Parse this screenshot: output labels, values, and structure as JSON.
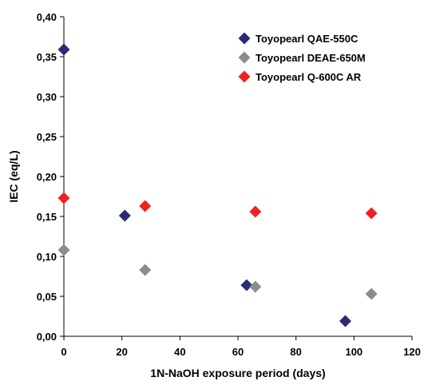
{
  "chart_data": {
    "type": "scatter",
    "xlabel": "1N-NaOH exposure period (days)",
    "ylabel": "IEC (eq/L)",
    "xlim": [
      0,
      120
    ],
    "ylim": [
      0,
      0.4
    ],
    "x_ticks": [
      0,
      20,
      40,
      60,
      80,
      100,
      120
    ],
    "y_ticks": [
      0,
      0.05,
      0.1,
      0.15,
      0.2,
      0.25,
      0.3,
      0.35,
      0.4
    ],
    "x_tick_labels": [
      "0",
      "20",
      "40",
      "60",
      "80",
      "100",
      "120"
    ],
    "y_tick_labels": [
      "0,00",
      "0,05",
      "0,10",
      "0,15",
      "0,20",
      "0,25",
      "0,30",
      "0,35",
      "0,40"
    ],
    "grid": false,
    "legend_position": "top-right",
    "marker": "diamond",
    "series": [
      {
        "name": "Toyopearl QAE-550C",
        "color": "#2b2b73",
        "points": [
          [
            0,
            0.359
          ],
          [
            21,
            0.151
          ],
          [
            63,
            0.064
          ],
          [
            97,
            0.019
          ]
        ]
      },
      {
        "name": "Toyopearl DEAE-650M",
        "color": "#8c8c8c",
        "points": [
          [
            0,
            0.108
          ],
          [
            28,
            0.083
          ],
          [
            66,
            0.062
          ],
          [
            106,
            0.053
          ]
        ]
      },
      {
        "name": "Toyopearl Q-600C AR",
        "color": "#ee2222",
        "points": [
          [
            0,
            0.173
          ],
          [
            28,
            0.163
          ],
          [
            66,
            0.156
          ],
          [
            106,
            0.154
          ]
        ]
      }
    ]
  }
}
